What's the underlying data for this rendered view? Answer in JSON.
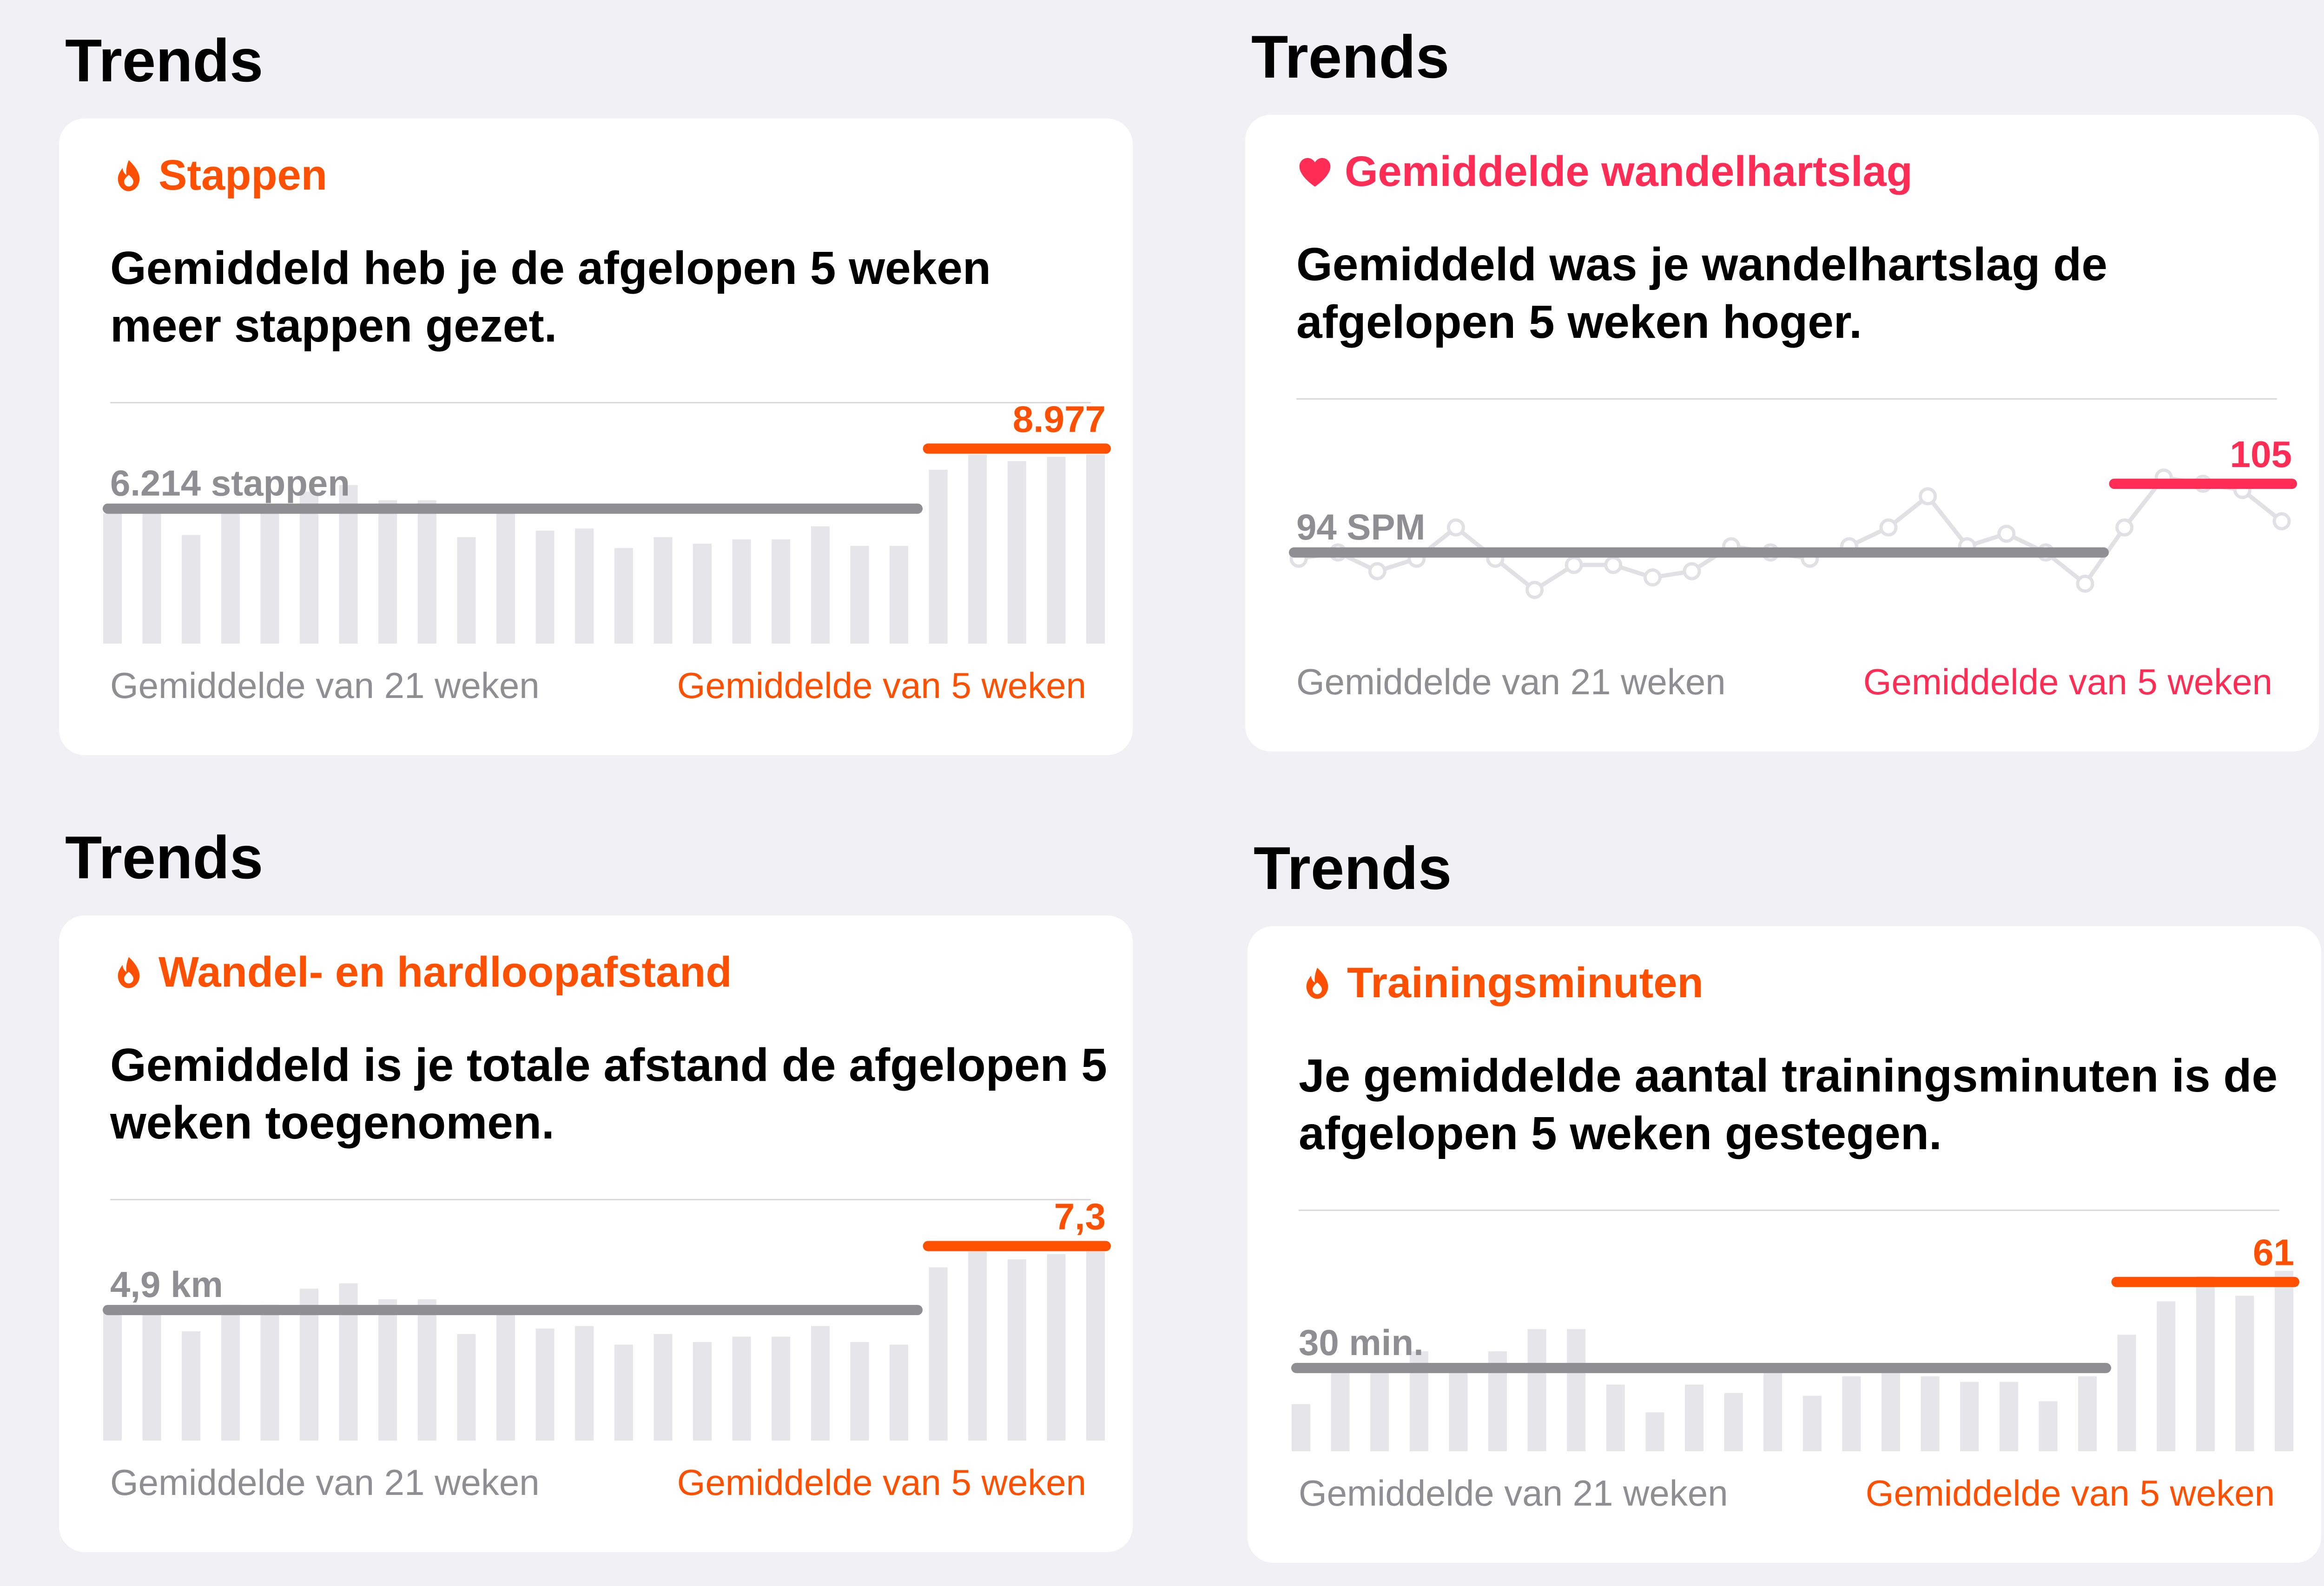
{
  "sections": [
    {
      "heading": "Trends",
      "title": "Stappen",
      "icon": "flame-icon",
      "accent": "#ff4f00",
      "description": "Gemiddeld heb je de afgelopen 5 weken meer stappen gezet.",
      "avg_long_label": "Gemiddelde van 21 weken",
      "avg_short_label": "Gemiddelde van 5 weken",
      "chart_data": {
        "type": "bar",
        "long_average": {
          "label": "6.214 stappen",
          "value": 6214
        },
        "short_average": {
          "label": "8.977",
          "value": 8977
        },
        "values": [
          6000,
          6200,
          5000,
          6200,
          6200,
          7000,
          7300,
          6600,
          6600,
          4900,
          6100,
          5200,
          5300,
          4400,
          4900,
          4600,
          4800,
          4800,
          5400,
          4500,
          4500,
          8000,
          8700,
          8400,
          8600,
          8700
        ],
        "ylim": [
          0,
          9200
        ]
      }
    },
    {
      "heading": "Trends",
      "title": "Gemiddelde wandelhartslag",
      "icon": "heart-icon",
      "accent": "#ff2d55",
      "description": "Gemiddeld was je wandelhartslag de afgelopen 5 weken hoger.",
      "avg_long_label": "Gemiddelde van 21 weken",
      "avg_short_label": "Gemiddelde van 5 weken",
      "chart_data": {
        "type": "line",
        "long_average": {
          "label": "94 SPM",
          "value": 94
        },
        "short_average": {
          "label": "105",
          "value": 105
        },
        "values": [
          93,
          94,
          91,
          93,
          98,
          93,
          88,
          92,
          92,
          90,
          91,
          95,
          94,
          93,
          95,
          98,
          103,
          95,
          97,
          94,
          89,
          98,
          106,
          105,
          104,
          99
        ],
        "ylim": [
          80,
          112
        ]
      }
    },
    {
      "heading": "Trends",
      "title": "Wandel- en hardloopafstand",
      "icon": "flame-icon",
      "accent": "#ff4f00",
      "description": "Gemiddeld is je totale afstand de afgelopen 5 weken toegenomen.",
      "avg_long_label": "Gemiddelde van 21 weken",
      "avg_short_label": "Gemiddelde van 5 weken",
      "chart_data": {
        "type": "bar",
        "long_average": {
          "label": "4,9 km",
          "value": 4.9
        },
        "short_average": {
          "label": "7,3",
          "value": 7.3
        },
        "values": [
          4.8,
          5.0,
          4.1,
          5.1,
          5.1,
          5.7,
          5.9,
          5.3,
          5.3,
          4.0,
          5.0,
          4.2,
          4.3,
          3.6,
          4.0,
          3.7,
          3.9,
          3.9,
          4.3,
          3.7,
          3.6,
          6.5,
          7.1,
          6.8,
          7.0,
          7.1
        ],
        "ylim": [
          0,
          7.5
        ]
      }
    },
    {
      "heading": "Trends",
      "title": "Trainingsminuten",
      "icon": "flame-icon",
      "accent": "#ff4f00",
      "description": "Je gemiddelde aantal trainingsminuten is de afgelopen 5 weken gestegen.",
      "avg_long_label": "Gemiddelde van 21 weken",
      "avg_short_label": "Gemiddelde van 5 weken",
      "chart_data": {
        "type": "bar",
        "long_average": {
          "label": "30 min.",
          "value": 30
        },
        "short_average": {
          "label": "61",
          "value": 61
        },
        "values": [
          17,
          29,
          31,
          36,
          30,
          36,
          44,
          44,
          24,
          14,
          24,
          21,
          30,
          20,
          27,
          29,
          27,
          25,
          25,
          18,
          27,
          42,
          54,
          63,
          56,
          65
        ],
        "ylim": [
          0,
          72
        ]
      }
    }
  ]
}
